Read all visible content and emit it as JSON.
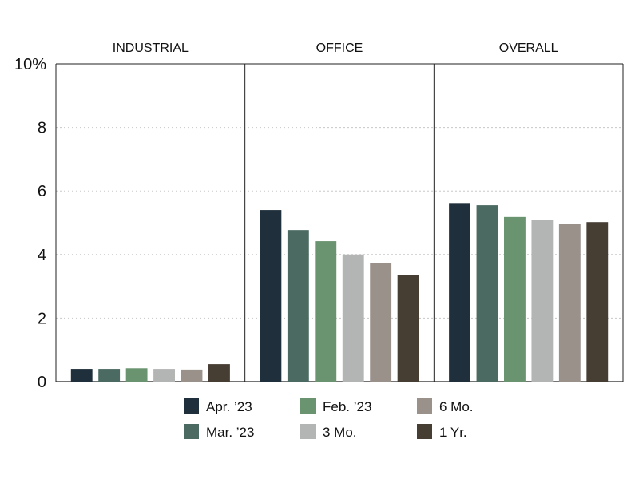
{
  "chart_data": {
    "type": "bar",
    "panels": [
      "INDUSTRIAL",
      "OFFICE",
      "OVERALL"
    ],
    "series": [
      {
        "name": "Apr. ’23",
        "color": "#1f2f3b",
        "values": [
          0.4,
          5.4,
          5.62
        ]
      },
      {
        "name": "Mar. ’23",
        "color": "#4a6a62",
        "values": [
          0.4,
          4.77,
          5.55
        ]
      },
      {
        "name": "Feb. ’23",
        "color": "#6a9470",
        "values": [
          0.42,
          4.42,
          5.18
        ]
      },
      {
        "name": "3 Mo.",
        "color": "#b3b5b4",
        "values": [
          0.4,
          4.0,
          5.1
        ]
      },
      {
        "name": "6 Mo.",
        "color": "#9a918b",
        "values": [
          0.38,
          3.72,
          4.97
        ]
      },
      {
        "name": "1 Yr.",
        "color": "#463d33",
        "values": [
          0.55,
          3.35,
          5.02
        ]
      }
    ],
    "yticks": [
      "0",
      "2",
      "4",
      "6",
      "8",
      "10%"
    ],
    "ylim": [
      0,
      10
    ],
    "grid": true,
    "legend_position": "bottom"
  }
}
